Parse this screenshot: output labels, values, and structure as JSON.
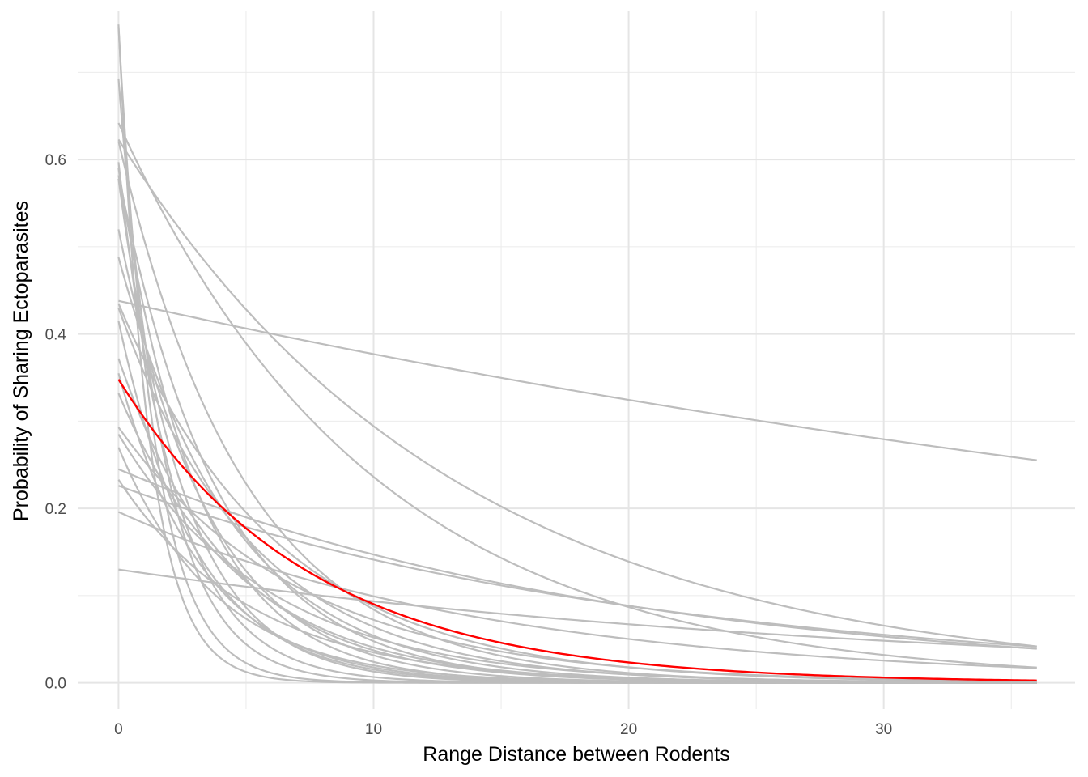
{
  "chart_data": {
    "type": "line",
    "title": "",
    "xlabel": "Range Distance between Rodents",
    "ylabel": "Probability of Sharing Ectoparasites",
    "xlim": [
      -1.6,
      37.5
    ],
    "ylim": [
      -0.03,
      0.77
    ],
    "x_ticks": [
      0,
      10,
      20,
      30
    ],
    "x_tick_labels": [
      "0",
      "10",
      "20",
      "30"
    ],
    "y_ticks": [
      0.0,
      0.2,
      0.4,
      0.6
    ],
    "y_tick_labels": [
      "0.0",
      "0.2",
      "0.4",
      "0.6"
    ],
    "grid": true,
    "legend": "none",
    "x_range": [
      0,
      36
    ],
    "series_format": "each series is {a, b}: y = a * exp(-b * x), x from 0 to 36",
    "background_series_color": "#bdbdbd",
    "highlight_series_color": "#ff0000",
    "series": [
      {
        "a": 0.755,
        "b": 0.82
      },
      {
        "a": 0.752,
        "b": 0.7
      },
      {
        "a": 0.693,
        "b": 0.55
      },
      {
        "a": 0.642,
        "b": 0.1
      },
      {
        "a": 0.623,
        "b": 0.075
      },
      {
        "a": 0.621,
        "b": 0.2
      },
      {
        "a": 0.597,
        "b": 0.45
      },
      {
        "a": 0.59,
        "b": 0.32
      },
      {
        "a": 0.582,
        "b": 0.25
      },
      {
        "a": 0.578,
        "b": 0.38
      },
      {
        "a": 0.52,
        "b": 0.28
      },
      {
        "a": 0.488,
        "b": 0.22
      },
      {
        "a": 0.438,
        "b": 0.015
      },
      {
        "a": 0.435,
        "b": 0.16
      },
      {
        "a": 0.43,
        "b": 0.19
      },
      {
        "a": 0.415,
        "b": 0.33
      },
      {
        "a": 0.372,
        "b": 0.23
      },
      {
        "a": 0.355,
        "b": 0.3
      },
      {
        "a": 0.332,
        "b": 0.21
      },
      {
        "a": 0.293,
        "b": 0.14
      },
      {
        "a": 0.285,
        "b": 0.17
      },
      {
        "a": 0.27,
        "b": 0.26
      },
      {
        "a": 0.245,
        "b": 0.051
      },
      {
        "a": 0.233,
        "b": 0.19
      },
      {
        "a": 0.226,
        "b": 0.047
      },
      {
        "a": 0.196,
        "b": 0.068
      },
      {
        "a": 0.13,
        "b": 0.033
      },
      {
        "a": 0.348,
        "b": 0.135,
        "highlight": true
      }
    ]
  }
}
